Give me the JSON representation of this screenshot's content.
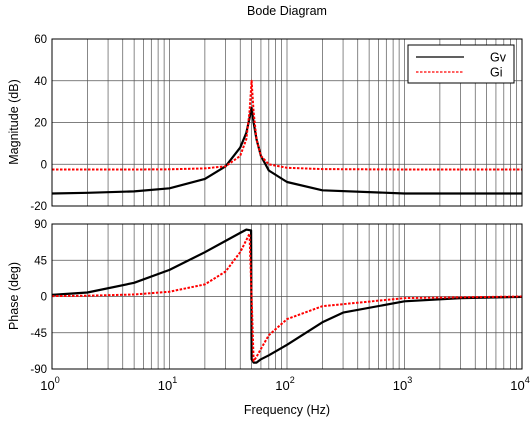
{
  "chart_data": {
    "type": "line",
    "title": "Bode Diagram",
    "xlabel": "Frequency  (Hz)",
    "x_scale": "log",
    "xlim": [
      1,
      10000
    ],
    "x_tick_labels": [
      {
        "base": "10",
        "exp": "0"
      },
      {
        "base": "10",
        "exp": "1"
      },
      {
        "base": "10",
        "exp": "2"
      },
      {
        "base": "10",
        "exp": "3"
      },
      {
        "base": "10",
        "exp": "4"
      }
    ],
    "grid": true,
    "legend": {
      "position": "top-right",
      "entries": [
        "Gv",
        "Gi"
      ]
    },
    "colors": {
      "Gv": "#000000",
      "Gi": "#ff0000"
    },
    "panels": [
      {
        "name": "magnitude",
        "ylabel": "Magnitude (dB)",
        "ylim": [
          -20,
          60
        ],
        "yticks": [
          -20,
          0,
          20,
          40,
          60
        ],
        "series": [
          {
            "name": "Gv",
            "x": [
              1,
              2,
              5,
              10,
              20,
              30,
              40,
              45,
              48,
              50,
              52,
              55,
              60,
              70,
              100,
              200,
              1000,
              10000
            ],
            "y": [
              -14,
              -13.7,
              -13,
              -11.5,
              -7,
              -1,
              8,
              15,
              22,
              27,
              20,
              12,
              4,
              -3,
              -8.5,
              -12.5,
              -14,
              -14
            ]
          },
          {
            "name": "Gi",
            "x": [
              1,
              2,
              5,
              10,
              20,
              30,
              40,
              45,
              48,
              50,
              52,
              55,
              60,
              70,
              100,
              200,
              1000,
              10000
            ],
            "y": [
              -2.5,
              -2.5,
              -2.5,
              -2.4,
              -2,
              -1,
              4,
              12,
              25,
              40,
              25,
              12,
              4,
              0,
              -1.7,
              -2.3,
              -2.5,
              -2.5
            ]
          }
        ]
      },
      {
        "name": "phase",
        "ylabel": "Phase (deg)",
        "ylim": [
          -90,
          90
        ],
        "yticks": [
          -90,
          -45,
          0,
          45,
          90
        ],
        "series": [
          {
            "name": "Gv",
            "x": [
              1,
              2,
              5,
              10,
              20,
              30,
              40,
              45,
              49.5,
              50,
              52,
              55,
              60,
              70,
              100,
              200,
              300,
              1000,
              3000,
              10000
            ],
            "y": [
              2,
              5,
              17,
              33,
              55,
              69,
              79,
              83,
              82,
              -78,
              -82,
              -82,
              -78,
              -73,
              -60,
              -32,
              -20,
              -6,
              -2,
              -0.5
            ]
          },
          {
            "name": "Gi",
            "x": [
              1,
              2,
              5,
              10,
              20,
              30,
              40,
              45,
              48,
              50,
              52,
              55,
              60,
              70,
              100,
              200,
              1000,
              10000
            ],
            "y": [
              0.5,
              1,
              2.5,
              6,
              15,
              31,
              55,
              70,
              78,
              0,
              -80,
              -75,
              -65,
              -48,
              -28,
              -12,
              -2,
              0
            ]
          }
        ]
      }
    ]
  }
}
